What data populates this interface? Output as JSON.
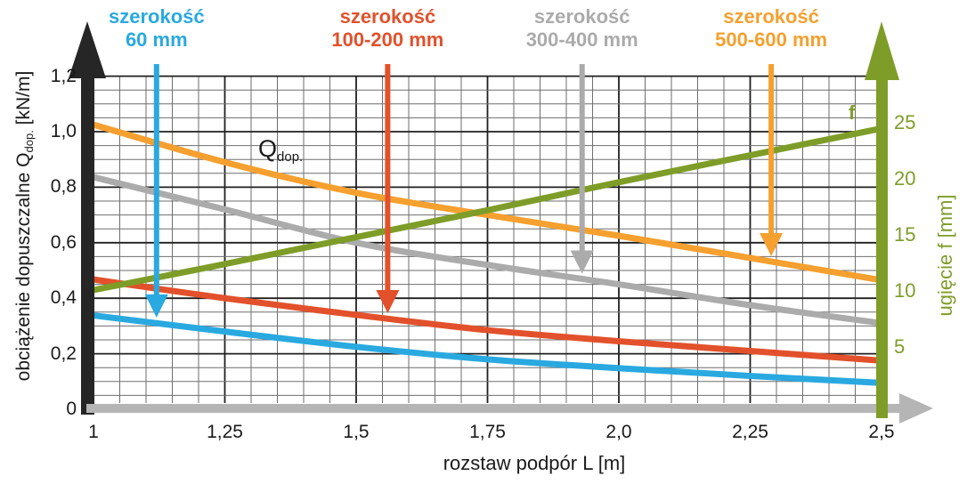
{
  "chart_data": {
    "type": "line",
    "title": "",
    "xlabel": "rozstaw podpór L [m]",
    "ylabel_left": {
      "prefix": "obciążenie dopuszczalne Q",
      "sub": "dop.",
      "suffix": " [kN/m]"
    },
    "ylabel_right": "ugięcie f [mm]",
    "x": [
      1.0,
      1.25,
      1.5,
      1.75,
      2.0,
      2.25,
      2.5
    ],
    "x_tick_labels": [
      "1",
      "1,25",
      "1,5",
      "1,75",
      "2,0",
      "2,25",
      "2,5"
    ],
    "x_range": [
      1.0,
      2.5
    ],
    "y_left_ticks": [
      0,
      0.2,
      0.4,
      0.6,
      0.8,
      1.0,
      1.2
    ],
    "y_left_tick_labels": [
      "0",
      "0,2",
      "0,4",
      "0,6",
      "0,8",
      "1,0",
      "1,2"
    ],
    "y_left_range": [
      0,
      1.2
    ],
    "y_right_ticks": [
      5,
      10,
      15,
      20,
      25
    ],
    "y_right_tick_labels": [
      "5",
      "10",
      "15",
      "20",
      "25"
    ],
    "y_right_range": [
      0,
      25
    ],
    "grid": "minor 0.05 steps, major every 0.25 m / 0.2 kN/m",
    "legend_position": "labels above plot with arrows to curves",
    "series": [
      {
        "id": "60mm",
        "label": "szerokość",
        "width_label": "60 mm",
        "axis": "left",
        "color": "#29A9E0",
        "values": [
          0.34,
          0.28,
          0.225,
          0.18,
          0.148,
          0.12,
          0.095
        ]
      },
      {
        "id": "100-200mm",
        "label": "szerokość",
        "width_label": "100-200 mm",
        "axis": "left",
        "color": "#E2512B",
        "values": [
          0.47,
          0.4,
          0.34,
          0.285,
          0.245,
          0.21,
          0.175
        ]
      },
      {
        "id": "300-400mm",
        "label": "szerokość",
        "width_label": "300-400 mm",
        "axis": "left",
        "color": "#ABABAB",
        "values": [
          0.84,
          0.72,
          0.6,
          0.52,
          0.45,
          0.375,
          0.31
        ]
      },
      {
        "id": "500-600mm",
        "label": "szerokość",
        "width_label": "500-600 mm",
        "axis": "left",
        "color": "#F5A02F",
        "values": [
          1.03,
          0.89,
          0.78,
          0.7,
          0.625,
          0.545,
          0.465
        ]
      },
      {
        "id": "deflection-f",
        "label": "f",
        "width_label": "",
        "axis": "right",
        "color": "#7E9D28",
        "values": [
          10.0,
          12.4,
          14.8,
          17.2,
          19.7,
          22.1,
          24.5
        ]
      }
    ],
    "annotations": {
      "qdop_curve_label": {
        "main": "Q",
        "sub": "dop."
      },
      "f_curve_label": "f",
      "arrows": [
        {
          "series_index": 0,
          "L": 1.12
        },
        {
          "series_index": 1,
          "L": 1.56
        },
        {
          "series_index": 2,
          "L": 1.93
        },
        {
          "series_index": 3,
          "L": 2.29
        }
      ]
    }
  },
  "colors": {
    "left_axis": "#262626",
    "bottom_axis": "#B5B5B5",
    "right_axis": "#7E9D28",
    "grid_minor": "#6E6E6E",
    "grid_major": "#1F1F1F",
    "text": "#1A1A1A",
    "olive_text": "#7E9D28"
  }
}
